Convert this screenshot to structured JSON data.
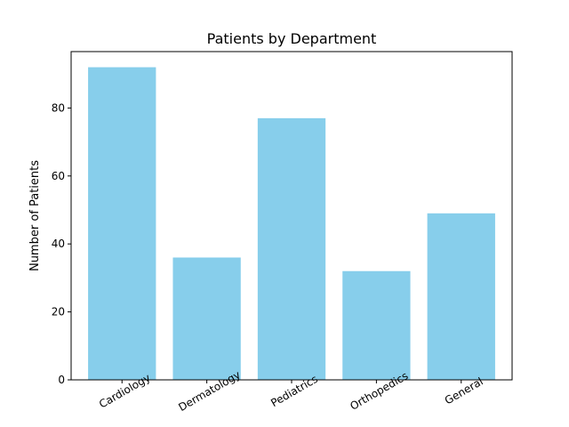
{
  "chart_data": {
    "type": "bar",
    "title": "Patients by Department",
    "xlabel": "",
    "ylabel": "Number of Patients",
    "categories": [
      "Cardiology",
      "Dermatology",
      "Pediatrics",
      "Orthopedics",
      "General"
    ],
    "values": [
      92,
      36,
      77,
      32,
      49
    ],
    "ylim": [
      0,
      96.6
    ],
    "yticks": [
      0,
      20,
      40,
      60,
      80
    ],
    "xtick_rotation": 30,
    "bar_color": "#87ceeb",
    "grid": false,
    "legend": "none"
  }
}
